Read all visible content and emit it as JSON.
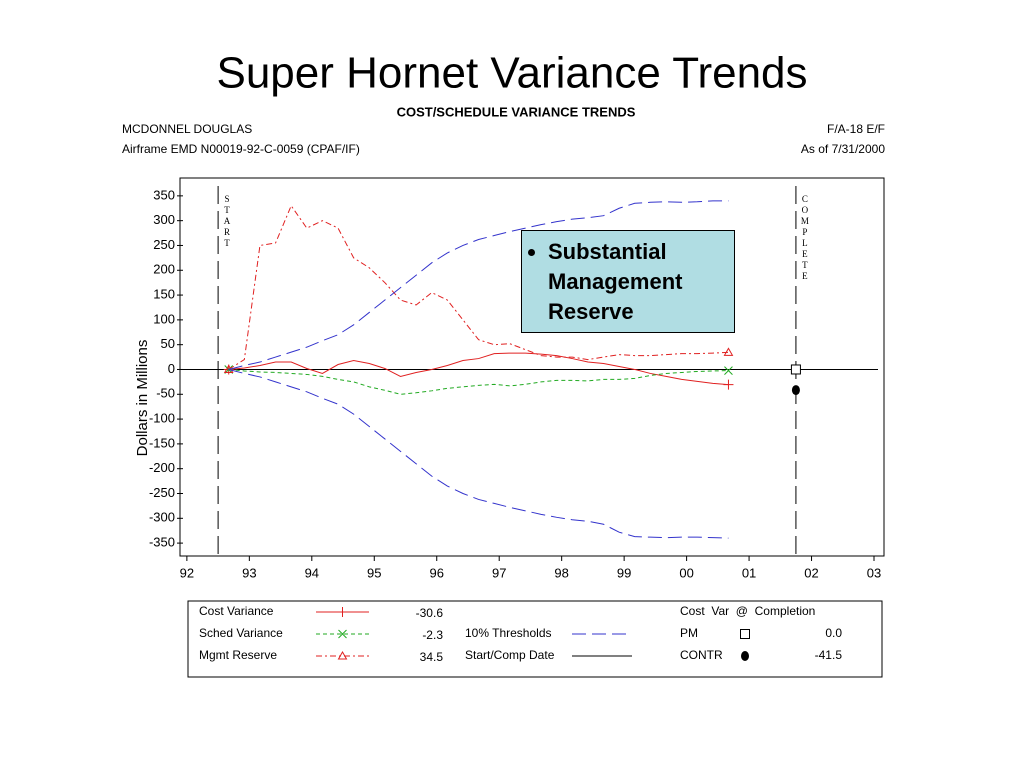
{
  "chart_data": {
    "type": "line",
    "slide_title": "Super Hornet Variance Trends",
    "title": "COST/SCHEDULE VARIANCE TRENDS",
    "header_left": [
      "MCDONNEL DOUGLAS",
      "Airframe EMD  N00019-92-C-0059  (CPAF/IF)"
    ],
    "header_right": [
      "F/A-18 E/F",
      "As of 7/31/2000"
    ],
    "ylabel": "Dollars in Millions",
    "annotation": "Substantial Management Reserve",
    "xlim": [
      1991.89,
      2003.16
    ],
    "xticks": [
      {
        "value": 1992,
        "label": "92"
      },
      {
        "value": 1993,
        "label": "93"
      },
      {
        "value": 1994,
        "label": "94"
      },
      {
        "value": 1995,
        "label": "95"
      },
      {
        "value": 1996,
        "label": "96"
      },
      {
        "value": 1997,
        "label": "97"
      },
      {
        "value": 1998,
        "label": "98"
      },
      {
        "value": 1999,
        "label": "99"
      },
      {
        "value": 2000,
        "label": "00"
      },
      {
        "value": 2001,
        "label": "01"
      },
      {
        "value": 2002,
        "label": "02"
      },
      {
        "value": 2003,
        "label": "03"
      }
    ],
    "ylim": [
      -376,
      386
    ],
    "yticks": [
      350,
      300,
      250,
      200,
      150,
      100,
      50,
      0,
      -50,
      -100,
      -150,
      -200,
      -250,
      -300,
      -350
    ],
    "x": [
      1992.67,
      1992.92,
      1993.17,
      1993.42,
      1993.67,
      1993.92,
      1994.17,
      1994.42,
      1994.67,
      1994.92,
      1995.17,
      1995.42,
      1995.67,
      1995.92,
      1996.17,
      1996.42,
      1996.67,
      1996.92,
      1997.17,
      1997.42,
      1997.67,
      1997.92,
      1998.17,
      1998.42,
      1998.67,
      1998.92,
      1999.17,
      1999.42,
      1999.67,
      1999.92,
      2000.17,
      2000.42,
      2000.67
    ],
    "series": [
      {
        "name": "Cost Variance",
        "color": "#e02020",
        "dash": "solid",
        "marker": "plus",
        "values": [
          0,
          3,
          8,
          15,
          15,
          2,
          -8,
          10,
          18,
          12,
          2,
          -14,
          -6,
          0,
          8,
          18,
          22,
          32,
          33,
          33,
          31,
          28,
          22,
          15,
          12,
          6,
          0,
          -8,
          -14,
          -20,
          -24,
          -28,
          -30.6
        ]
      },
      {
        "name": "Sched Variance",
        "color": "#22aa22",
        "dash": "dashed",
        "marker": "x",
        "values": [
          0,
          -3,
          -5,
          -6,
          -8,
          -10,
          -14,
          -20,
          -25,
          -35,
          -42,
          -50,
          -47,
          -43,
          -38,
          -35,
          -32,
          -30,
          -33,
          -30,
          -25,
          -22,
          -22,
          -23,
          -20,
          -20,
          -18,
          -12,
          -8,
          -6,
          -4,
          -3,
          -2.3
        ]
      },
      {
        "name": "Mgmt Reserve",
        "color": "#e02020",
        "dash": "dashdot",
        "marker": "triangle",
        "values": [
          0,
          20,
          250,
          255,
          330,
          285,
          300,
          285,
          225,
          205,
          175,
          140,
          130,
          155,
          140,
          100,
          60,
          50,
          52,
          40,
          28,
          25,
          25,
          20,
          25,
          30,
          28,
          28,
          30,
          32,
          32,
          33,
          34.5
        ]
      },
      {
        "name": "10% Thresholds",
        "color": "#3333cc",
        "dash": "longdash",
        "marker": "none",
        "values": [
          0,
          8,
          15,
          25,
          35,
          45,
          58,
          70,
          90,
          115,
          140,
          165,
          190,
          215,
          235,
          250,
          262,
          270,
          278,
          285,
          292,
          298,
          303,
          306,
          310,
          325,
          335,
          337,
          338,
          337,
          338,
          340,
          340
        ],
        "lower": [
          0,
          -8,
          -15,
          -25,
          -35,
          -45,
          -58,
          -70,
          -90,
          -115,
          -140,
          -165,
          -190,
          -215,
          -235,
          -250,
          -262,
          -270,
          -278,
          -285,
          -292,
          -298,
          -303,
          -306,
          -312,
          -328,
          -337,
          -338,
          -339,
          -338,
          -338,
          -339,
          -340
        ]
      }
    ],
    "milestones": {
      "name": "Start/Comp Date",
      "color": "#000000",
      "lines": [
        {
          "x": 1992.5,
          "label": "START"
        },
        {
          "x": 2001.75,
          "label": "COMPLETE"
        }
      ]
    },
    "completion": {
      "title": "Cost  Var  @  Completion",
      "x": 2001.75,
      "points": [
        {
          "name": "PM",
          "marker": "square",
          "value": 0,
          "value_label": "0.0"
        },
        {
          "name": "CONTR",
          "marker": "circle",
          "value": -41.5
        }
      ]
    }
  }
}
